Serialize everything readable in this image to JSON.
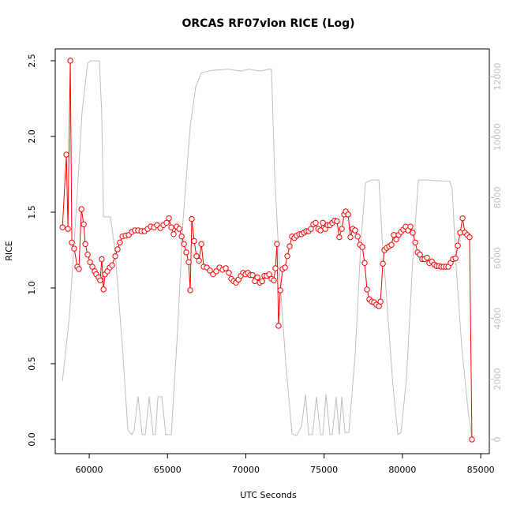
{
  "chart_data": {
    "type": "line",
    "title": "ORCAS RF07vlon RICE (Log)",
    "xlabel": "UTC Seconds",
    "ylabel": "RICE",
    "xlim": [
      57830,
      85550
    ],
    "ylim": [
      -0.094,
      2.578
    ],
    "y2lim": [
      -470,
      12913
    ],
    "xticks": [
      60000,
      65000,
      70000,
      75000,
      80000,
      85000
    ],
    "yticks": [
      {
        "value": 0,
        "label": "0.0"
      },
      0.5,
      {
        "value": 1,
        "label": "1.0"
      },
      1.5,
      {
        "value": 2,
        "label": "2.0"
      },
      2.5
    ],
    "y2ticks": [
      0,
      2000,
      4000,
      6000,
      8000,
      10000,
      12000
    ],
    "y2color": "#bebebe",
    "series": [
      {
        "color": "#bebebe",
        "axis": "y2",
        "x": [
          58290,
          58740,
          59190,
          59550,
          59900,
          60100,
          60650,
          60800,
          60910,
          61360,
          61660,
          62120,
          62470,
          62720,
          62870,
          63120,
          63380,
          63580,
          63830,
          64080,
          64230,
          64390,
          64640,
          64890,
          65240,
          65640,
          65990,
          66450,
          66800,
          67160,
          67910,
          68920,
          69680,
          70180,
          70940,
          71440,
          71640,
          71840,
          72200,
          72550,
          72950,
          73250,
          73560,
          73810,
          74010,
          74260,
          74510,
          74770,
          74920,
          75120,
          75370,
          75520,
          75770,
          75970,
          76130,
          76330,
          76580,
          76980,
          77340,
          77640,
          77990,
          78500,
          78700,
          79000,
          79400,
          79710,
          79910,
          80260,
          80660,
          81020,
          81520,
          83030,
          83180,
          83440,
          83790,
          84190,
          84440
        ],
        "values": [
          1930,
          4100,
          7750,
          10880,
          12440,
          12520,
          12520,
          10750,
          7360,
          7360,
          6180,
          3050,
          310,
          160,
          310,
          1430,
          160,
          160,
          1410,
          160,
          160,
          1410,
          1410,
          160,
          160,
          3570,
          7230,
          10360,
          11660,
          12130,
          12210,
          12240,
          12180,
          12240,
          12180,
          12240,
          12240,
          8790,
          5140,
          2530,
          180,
          130,
          440,
          1490,
          160,
          160,
          1410,
          160,
          160,
          1490,
          160,
          160,
          1410,
          160,
          1410,
          230,
          230,
          2790,
          6440,
          8480,
          8580,
          8580,
          6700,
          4620,
          1750,
          160,
          230,
          2010,
          5920,
          8580,
          8580,
          8530,
          8270,
          5660,
          3050,
          970,
          50
        ]
      },
      {
        "color": "#ff0000",
        "marker": "circle",
        "x": [
          58290,
          58540,
          58640,
          58790,
          58890,
          59040,
          59240,
          59340,
          59500,
          59650,
          59750,
          59900,
          60050,
          60200,
          60350,
          60450,
          60600,
          60700,
          60800,
          60910,
          61010,
          61160,
          61310,
          61460,
          61660,
          61810,
          61960,
          62120,
          62320,
          62520,
          62720,
          62920,
          63120,
          63330,
          63530,
          63730,
          63930,
          64130,
          64330,
          64540,
          64740,
          64940,
          65090,
          65240,
          65390,
          65590,
          65750,
          65900,
          66050,
          66200,
          66350,
          66450,
          66550,
          66700,
          66850,
          67010,
          67160,
          67310,
          67510,
          67710,
          67910,
          68110,
          68320,
          68520,
          68720,
          68920,
          69070,
          69220,
          69370,
          69530,
          69680,
          69830,
          69980,
          70130,
          70280,
          70430,
          70580,
          70740,
          70890,
          71040,
          71190,
          71340,
          71490,
          71640,
          71790,
          71890,
          71990,
          72090,
          72200,
          72350,
          72500,
          72650,
          72800,
          72950,
          73100,
          73250,
          73410,
          73560,
          73710,
          73860,
          74010,
          74160,
          74310,
          74460,
          74620,
          74770,
          74920,
          75070,
          75220,
          75370,
          75520,
          75670,
          75820,
          75970,
          76130,
          76280,
          76380,
          76530,
          76680,
          76830,
          76980,
          77140,
          77290,
          77440,
          77590,
          77740,
          77890,
          78040,
          78190,
          78340,
          78500,
          78600,
          78750,
          78850,
          79000,
          79150,
          79300,
          79450,
          79610,
          79760,
          79910,
          80060,
          80210,
          80360,
          80510,
          80660,
          80820,
          80970,
          81120,
          81270,
          81420,
          81570,
          81720,
          81880,
          82030,
          82180,
          82330,
          82480,
          82630,
          82780,
          82930,
          83080,
          83230,
          83390,
          83540,
          83690,
          83840,
          83990,
          84140,
          84290,
          84440
        ],
        "values": [
          1.4,
          1.88,
          1.39,
          2.5,
          1.3,
          1.26,
          1.14,
          1.125,
          1.52,
          1.42,
          1.29,
          1.22,
          1.17,
          1.14,
          1.11,
          1.09,
          1.07,
          1.05,
          1.19,
          0.99,
          1.09,
          1.11,
          1.135,
          1.15,
          1.21,
          1.255,
          1.3,
          1.34,
          1.345,
          1.35,
          1.37,
          1.38,
          1.38,
          1.375,
          1.375,
          1.39,
          1.405,
          1.4,
          1.415,
          1.395,
          1.415,
          1.43,
          1.46,
          1.4,
          1.355,
          1.405,
          1.39,
          1.34,
          1.29,
          1.235,
          1.17,
          0.985,
          1.455,
          1.31,
          1.21,
          1.18,
          1.29,
          1.14,
          1.135,
          1.115,
          1.09,
          1.11,
          1.135,
          1.12,
          1.13,
          1.1,
          1.06,
          1.045,
          1.035,
          1.055,
          1.08,
          1.1,
          1.09,
          1.1,
          1.085,
          1.085,
          1.045,
          1.07,
          1.035,
          1.045,
          1.08,
          1.08,
          1.09,
          1.06,
          1.05,
          1.13,
          1.29,
          0.75,
          0.985,
          1.125,
          1.135,
          1.21,
          1.275,
          1.34,
          1.33,
          1.345,
          1.355,
          1.355,
          1.365,
          1.375,
          1.375,
          1.39,
          1.42,
          1.43,
          1.39,
          1.38,
          1.43,
          1.39,
          1.415,
          1.415,
          1.43,
          1.445,
          1.44,
          1.335,
          1.39,
          1.485,
          1.505,
          1.485,
          1.335,
          1.39,
          1.38,
          1.34,
          1.285,
          1.27,
          1.165,
          0.99,
          0.925,
          0.91,
          0.905,
          0.89,
          0.88,
          0.91,
          1.16,
          1.25,
          1.265,
          1.275,
          1.285,
          1.35,
          1.32,
          1.35,
          1.37,
          1.385,
          1.405,
          1.38,
          1.405,
          1.365,
          1.3,
          1.235,
          1.22,
          1.19,
          1.19,
          1.2,
          1.165,
          1.175,
          1.155,
          1.145,
          1.145,
          1.14,
          1.14,
          1.14,
          1.14,
          1.165,
          1.19,
          1.195,
          1.28,
          1.365,
          1.46,
          1.365,
          1.35,
          1.335,
          0
        ]
      }
    ]
  }
}
